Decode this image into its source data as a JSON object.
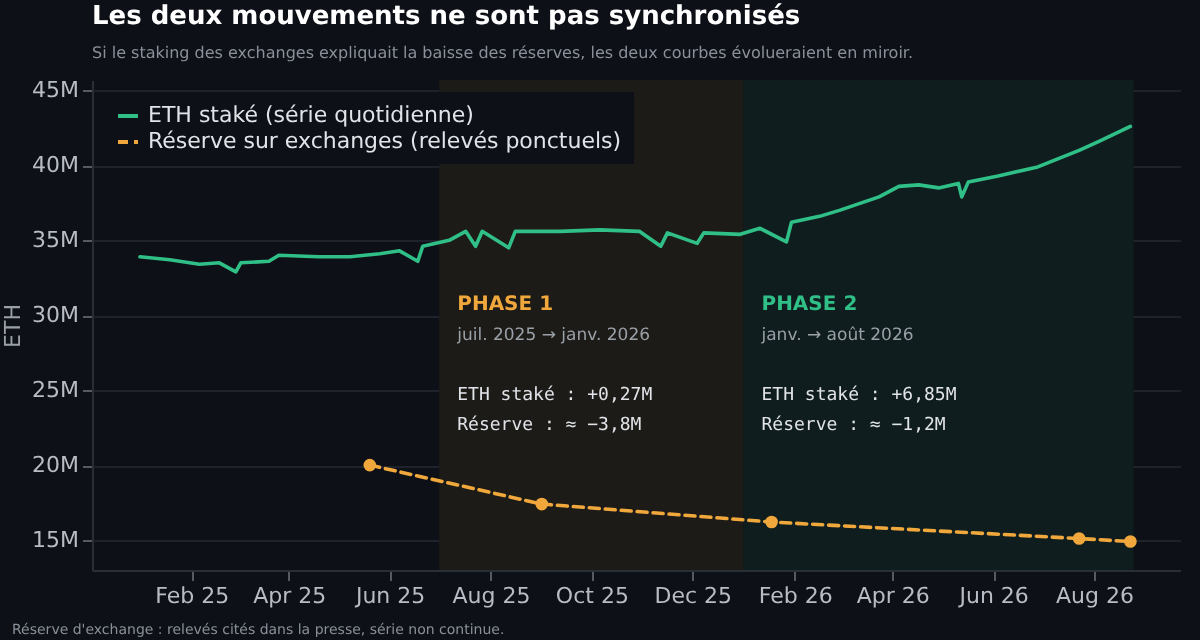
{
  "chart_data": {
    "type": "line",
    "title": "Les deux mouvements ne sont pas synchronisés",
    "subtitle": "Si le staking des exchanges expliquait la baisse des réserves, les deux courbes évolueraient en miroir.",
    "ylabel": "ETH",
    "xlim": [
      "2024-12-03",
      "2026-09-22"
    ],
    "xticks": [
      {
        "value": "2025-02-01",
        "label": "Feb 25"
      },
      {
        "value": "2025-04-01",
        "label": "Apr 25"
      },
      {
        "value": "2025-06-01",
        "label": "Jun 25"
      },
      {
        "value": "2025-08-01",
        "label": "Aug 25"
      },
      {
        "value": "2025-10-01",
        "label": "Oct 25"
      },
      {
        "value": "2025-12-01",
        "label": "Dec 25"
      },
      {
        "value": "2026-02-01",
        "label": "Feb 26"
      },
      {
        "value": "2026-04-01",
        "label": "Apr 26"
      },
      {
        "value": "2026-06-01",
        "label": "Jun 26"
      },
      {
        "value": "2026-08-01",
        "label": "Aug 26"
      }
    ],
    "ylim": [
      13,
      45.7
    ],
    "yticks": [
      {
        "value": 15,
        "label": "15M"
      },
      {
        "value": 20,
        "label": "20M"
      },
      {
        "value": 25,
        "label": "25M"
      },
      {
        "value": 30,
        "label": "30M"
      },
      {
        "value": 35,
        "label": "35M"
      },
      {
        "value": 40,
        "label": "40M"
      },
      {
        "value": 45,
        "label": "45M"
      }
    ],
    "grid": "y",
    "legend": "top left",
    "series": [
      {
        "name": "ETH staké (série quotidienne)",
        "color": "#2fbf87",
        "marker": "none",
        "line_style": "solid",
        "x": [
          "2025-01-01",
          "2025-01-19",
          "2025-02-06",
          "2025-02-18",
          "2025-02-28",
          "2025-03-03",
          "2025-03-20",
          "2025-03-26",
          "2025-04-19",
          "2025-05-08",
          "2025-05-26",
          "2025-06-07",
          "2025-06-18",
          "2025-06-21",
          "2025-07-07",
          "2025-07-17",
          "2025-07-23",
          "2025-07-27",
          "2025-08-12",
          "2025-08-16",
          "2025-09-12",
          "2025-10-06",
          "2025-10-30",
          "2025-11-12",
          "2025-11-16",
          "2025-12-04",
          "2025-12-08",
          "2025-12-30",
          "2026-01-11",
          "2026-01-27",
          "2026-01-30",
          "2026-02-16",
          "2026-02-28",
          "2026-03-24",
          "2026-04-05",
          "2026-04-17",
          "2026-04-29",
          "2026-05-11",
          "2026-05-13",
          "2026-05-17",
          "2026-06-04",
          "2026-06-28",
          "2026-07-23",
          "2026-08-04",
          "2026-08-23"
        ],
        "values": [
          33.9,
          33.7,
          33.4,
          33.5,
          32.9,
          33.5,
          33.6,
          34.0,
          33.9,
          33.9,
          34.1,
          34.3,
          33.6,
          34.6,
          35.0,
          35.6,
          34.6,
          35.6,
          34.5,
          35.6,
          35.6,
          35.7,
          35.6,
          34.6,
          35.5,
          34.8,
          35.5,
          35.4,
          35.8,
          34.9,
          36.2,
          36.6,
          37.0,
          37.9,
          38.6,
          38.7,
          38.5,
          38.8,
          37.9,
          38.9,
          39.3,
          39.9,
          41.0,
          41.6,
          42.6
        ]
      },
      {
        "name": "Réserve sur exchanges (relevés ponctuels)",
        "color": "#f0a83c",
        "marker": "circle",
        "line_style": "dashed",
        "x": [
          "2025-05-20",
          "2025-09-01",
          "2026-01-18",
          "2026-07-23",
          "2026-08-23"
        ],
        "values": [
          20.0,
          17.4,
          16.2,
          15.1,
          14.9
        ]
      }
    ],
    "bands": [
      {
        "axis": "x",
        "from": "2025-07-01",
        "to": "2026-01-01",
        "label": "PHASE 1",
        "color": "#1d1b17"
      },
      {
        "axis": "x",
        "from": "2026-01-01",
        "to": "2026-08-25",
        "label": "PHASE 2",
        "color": "#0f1d1e"
      }
    ],
    "annotations": [
      "juil. 2025 → janv. 2026",
      "ETH staké    : +0,27M",
      "Réserve       : ≈ −3,8M",
      "janv. → août 2026",
      "ETH staké    : +6,85M",
      "Réserve       : ≈ −1,2M",
      "Réserve d'exchange : relevés cités dans la presse, série non continue."
    ]
  }
}
